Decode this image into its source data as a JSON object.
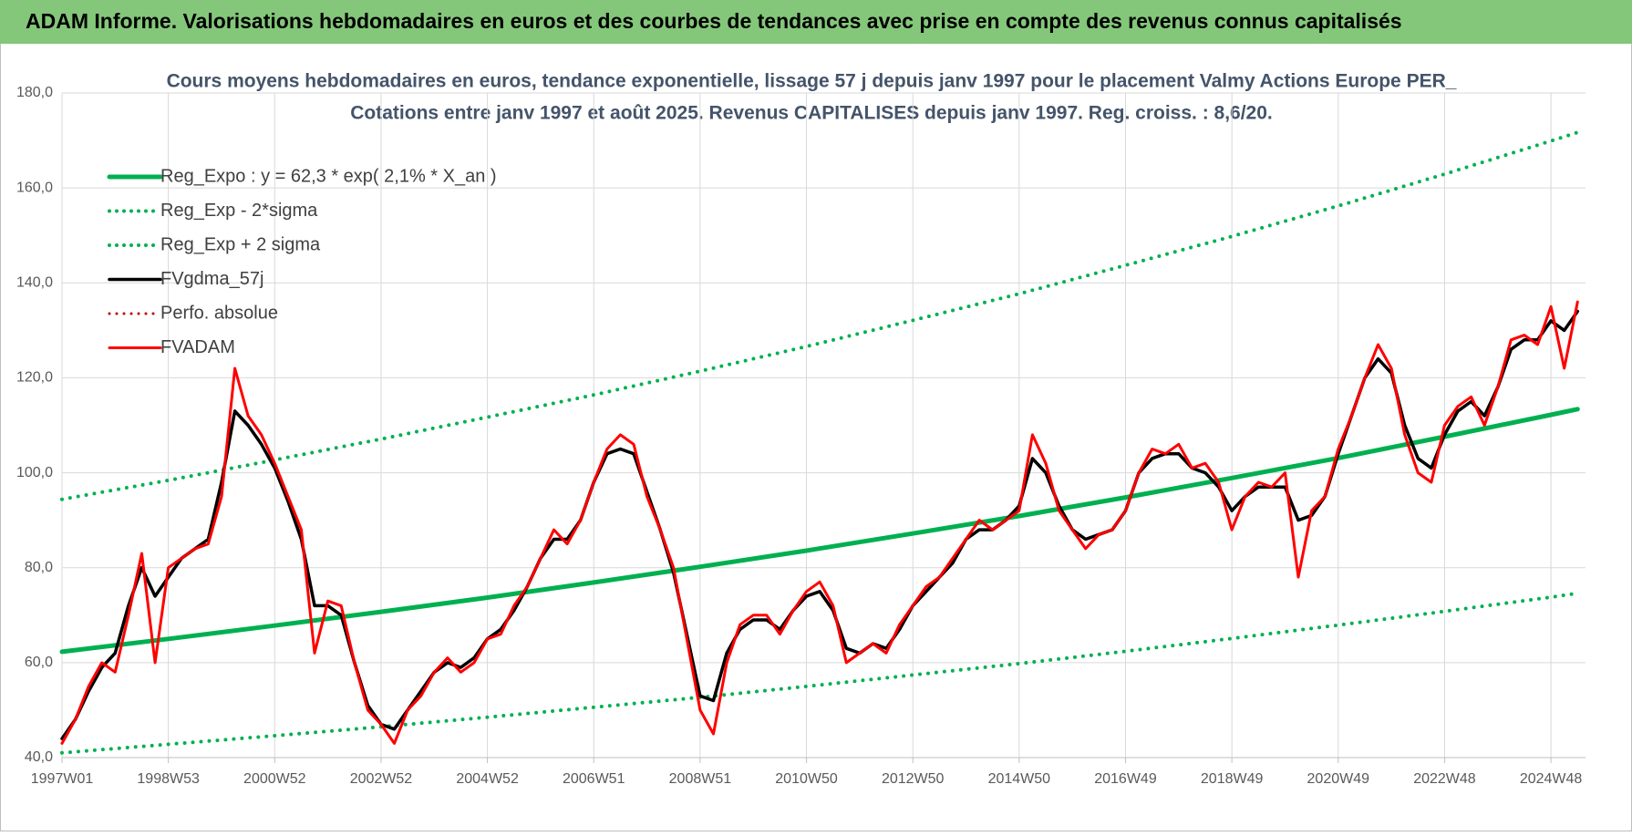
{
  "header": {
    "title": "ADAM Informe. Valorisations hebdomadaires en euros et des courbes de tendances avec prise en compte des revenus connus capitalisés"
  },
  "chart_data": {
    "type": "line",
    "title": "Cours moyens hebdomadaires en euros, tendance exponentielle, lissage 57 j depuis janv 1997 pour le placement Valmy Actions Europe PER_",
    "subtitle": "Cotations entre janv 1997 et août 2025. Revenus CAPITALISES depuis janv 1997. Reg. croiss. : 8,6/20.",
    "x": [
      1997,
      1997.25,
      1997.5,
      1997.75,
      1998,
      1998.25,
      1998.5,
      1998.75,
      1999,
      1999.25,
      1999.5,
      1999.75,
      2000,
      2000.25,
      2000.5,
      2000.75,
      2001,
      2001.25,
      2001.5,
      2001.75,
      2002,
      2002.25,
      2002.5,
      2002.75,
      2003,
      2003.25,
      2003.5,
      2003.75,
      2004,
      2004.25,
      2004.5,
      2004.75,
      2005,
      2005.25,
      2005.5,
      2005.75,
      2006,
      2006.25,
      2006.5,
      2006.75,
      2007,
      2007.25,
      2007.5,
      2007.75,
      2008,
      2008.25,
      2008.5,
      2008.75,
      2009,
      2009.25,
      2009.5,
      2009.75,
      2010,
      2010.25,
      2010.5,
      2010.75,
      2011,
      2011.25,
      2011.5,
      2011.75,
      2012,
      2012.25,
      2012.5,
      2012.75,
      2013,
      2013.25,
      2013.5,
      2013.75,
      2014,
      2014.25,
      2014.5,
      2014.75,
      2015,
      2015.25,
      2015.5,
      2015.75,
      2016,
      2016.25,
      2016.5,
      2016.75,
      2017,
      2017.25,
      2017.5,
      2017.75,
      2018,
      2018.25,
      2018.5,
      2018.75,
      2019,
      2019.25,
      2019.5,
      2019.75,
      2020,
      2020.25,
      2020.5,
      2020.75,
      2021,
      2021.25,
      2021.5,
      2021.75,
      2022,
      2022.25,
      2022.5,
      2022.75,
      2023,
      2023.25,
      2023.5,
      2023.75,
      2024,
      2024.25,
      2024.5,
      2024.75,
      2025,
      2025.25,
      2025.5
    ],
    "series": [
      {
        "name": "Reg_Expo : y = 62,3 * exp( 2,1% *  X_an )",
        "color": "#00b050",
        "style": "solid",
        "width": 5,
        "x": [
          1997,
          1999,
          2001,
          2003,
          2005,
          2007,
          2009,
          2011,
          2013,
          2015,
          2017,
          2019,
          2021,
          2023,
          2025,
          2025.5
        ],
        "values": [
          62.3,
          65.0,
          67.8,
          70.7,
          73.7,
          76.9,
          80.2,
          83.6,
          87.2,
          90.9,
          94.8,
          98.9,
          103.1,
          107.6,
          112.2,
          113.4
        ]
      },
      {
        "name": "Reg_Exp - 2*sigma",
        "color": "#00b050",
        "style": "dotted",
        "width": 4,
        "x": [
          1997,
          1999,
          2001,
          2003,
          2005,
          2007,
          2009,
          2011,
          2013,
          2015,
          2017,
          2019,
          2021,
          2023,
          2025,
          2025.5
        ],
        "values": [
          41.0,
          42.8,
          44.6,
          46.5,
          48.5,
          50.6,
          52.7,
          55.0,
          57.4,
          59.8,
          62.4,
          65.1,
          67.9,
          70.8,
          73.8,
          74.6
        ]
      },
      {
        "name": "Reg_Exp + 2 sigma",
        "color": "#00b050",
        "style": "dotted",
        "width": 4,
        "x": [
          1997,
          1999,
          2001,
          2003,
          2005,
          2007,
          2009,
          2011,
          2013,
          2015,
          2017,
          2019,
          2021,
          2023,
          2025,
          2025.5
        ],
        "values": [
          94.4,
          98.4,
          102.7,
          107.1,
          111.7,
          116.4,
          121.4,
          126.6,
          132.1,
          137.7,
          143.7,
          149.8,
          156.2,
          162.9,
          169.9,
          171.7
        ]
      },
      {
        "name": "FVgdma_57j",
        "color": "#000000",
        "style": "solid",
        "width": 3.5,
        "values": [
          44,
          48,
          54,
          59,
          62,
          72,
          80,
          74,
          78,
          82,
          84,
          86,
          98,
          113,
          110,
          106,
          101,
          94,
          86,
          72,
          72,
          70,
          60,
          51,
          47,
          46,
          50,
          54,
          58,
          60,
          59,
          61,
          65,
          67,
          71,
          76,
          82,
          86,
          86,
          90,
          98,
          104,
          105,
          104,
          96,
          88,
          79,
          66,
          53,
          52,
          62,
          67,
          69,
          69,
          67,
          71,
          74,
          75,
          71,
          63,
          62,
          64,
          63,
          67,
          72,
          75,
          78,
          81,
          86,
          88,
          88,
          90,
          93,
          103,
          100,
          93,
          88,
          86,
          87,
          88,
          92,
          100,
          103,
          104,
          104,
          101,
          100,
          97,
          92,
          95,
          97,
          97,
          97,
          90,
          91,
          95,
          104,
          112,
          120,
          124,
          121,
          110,
          103,
          101,
          108,
          113,
          115,
          112,
          118,
          126,
          128,
          128,
          132,
          130,
          134
        ]
      },
      {
        "name": "Perfo. absolue",
        "color": "#c00000",
        "style": "dotted",
        "width": 3,
        "x": [],
        "values": []
      },
      {
        "name": "FVADAM",
        "color": "#ff0000",
        "style": "solid",
        "width": 3,
        "values": [
          43,
          48,
          55,
          60,
          58,
          70,
          83,
          60,
          80,
          82,
          84,
          85,
          95,
          122,
          112,
          108,
          102,
          95,
          88,
          62,
          73,
          72,
          60,
          50,
          47,
          43,
          50,
          53,
          58,
          61,
          58,
          60,
          65,
          66,
          72,
          76,
          82,
          88,
          85,
          90,
          98,
          105,
          108,
          106,
          95,
          88,
          80,
          65,
          50,
          45,
          60,
          68,
          70,
          70,
          66,
          71,
          75,
          77,
          72,
          60,
          62,
          64,
          62,
          68,
          72,
          76,
          78,
          82,
          86,
          90,
          88,
          90,
          92,
          108,
          102,
          92,
          88,
          84,
          87,
          88,
          92,
          100,
          105,
          104,
          106,
          101,
          102,
          98,
          88,
          95,
          98,
          97,
          100,
          78,
          92,
          95,
          105,
          112,
          120,
          127,
          122,
          108,
          100,
          98,
          110,
          114,
          116,
          110,
          118,
          128,
          129,
          127,
          135,
          122,
          136
        ]
      }
    ],
    "xlim": [
      1997,
      2025.65
    ],
    "xticks": [
      {
        "value": 1997,
        "label": "1997W01"
      },
      {
        "value": 1999,
        "label": "1998W53"
      },
      {
        "value": 2001,
        "label": "2000W52"
      },
      {
        "value": 2003,
        "label": "2002W52"
      },
      {
        "value": 2005,
        "label": "2004W52"
      },
      {
        "value": 2007,
        "label": "2006W51"
      },
      {
        "value": 2009,
        "label": "2008W51"
      },
      {
        "value": 2011,
        "label": "2010W50"
      },
      {
        "value": 2013,
        "label": "2012W50"
      },
      {
        "value": 2015,
        "label": "2014W50"
      },
      {
        "value": 2017,
        "label": "2016W49"
      },
      {
        "value": 2019,
        "label": "2018W49"
      },
      {
        "value": 2021,
        "label": "2020W49"
      },
      {
        "value": 2023,
        "label": "2022W48"
      },
      {
        "value": 2025,
        "label": "2024W48"
      }
    ],
    "ylim": [
      40,
      180
    ],
    "yticks": [
      {
        "value": 40,
        "label": "40,0"
      },
      {
        "value": 60,
        "label": "60,0"
      },
      {
        "value": 80,
        "label": "80,0"
      },
      {
        "value": 100,
        "label": "100,0"
      },
      {
        "value": 120,
        "label": "120,0"
      },
      {
        "value": 140,
        "label": "140,0"
      },
      {
        "value": 160,
        "label": "160,0"
      },
      {
        "value": 180,
        "label": "180,0"
      }
    ],
    "grid": true,
    "legend": "upper left"
  }
}
